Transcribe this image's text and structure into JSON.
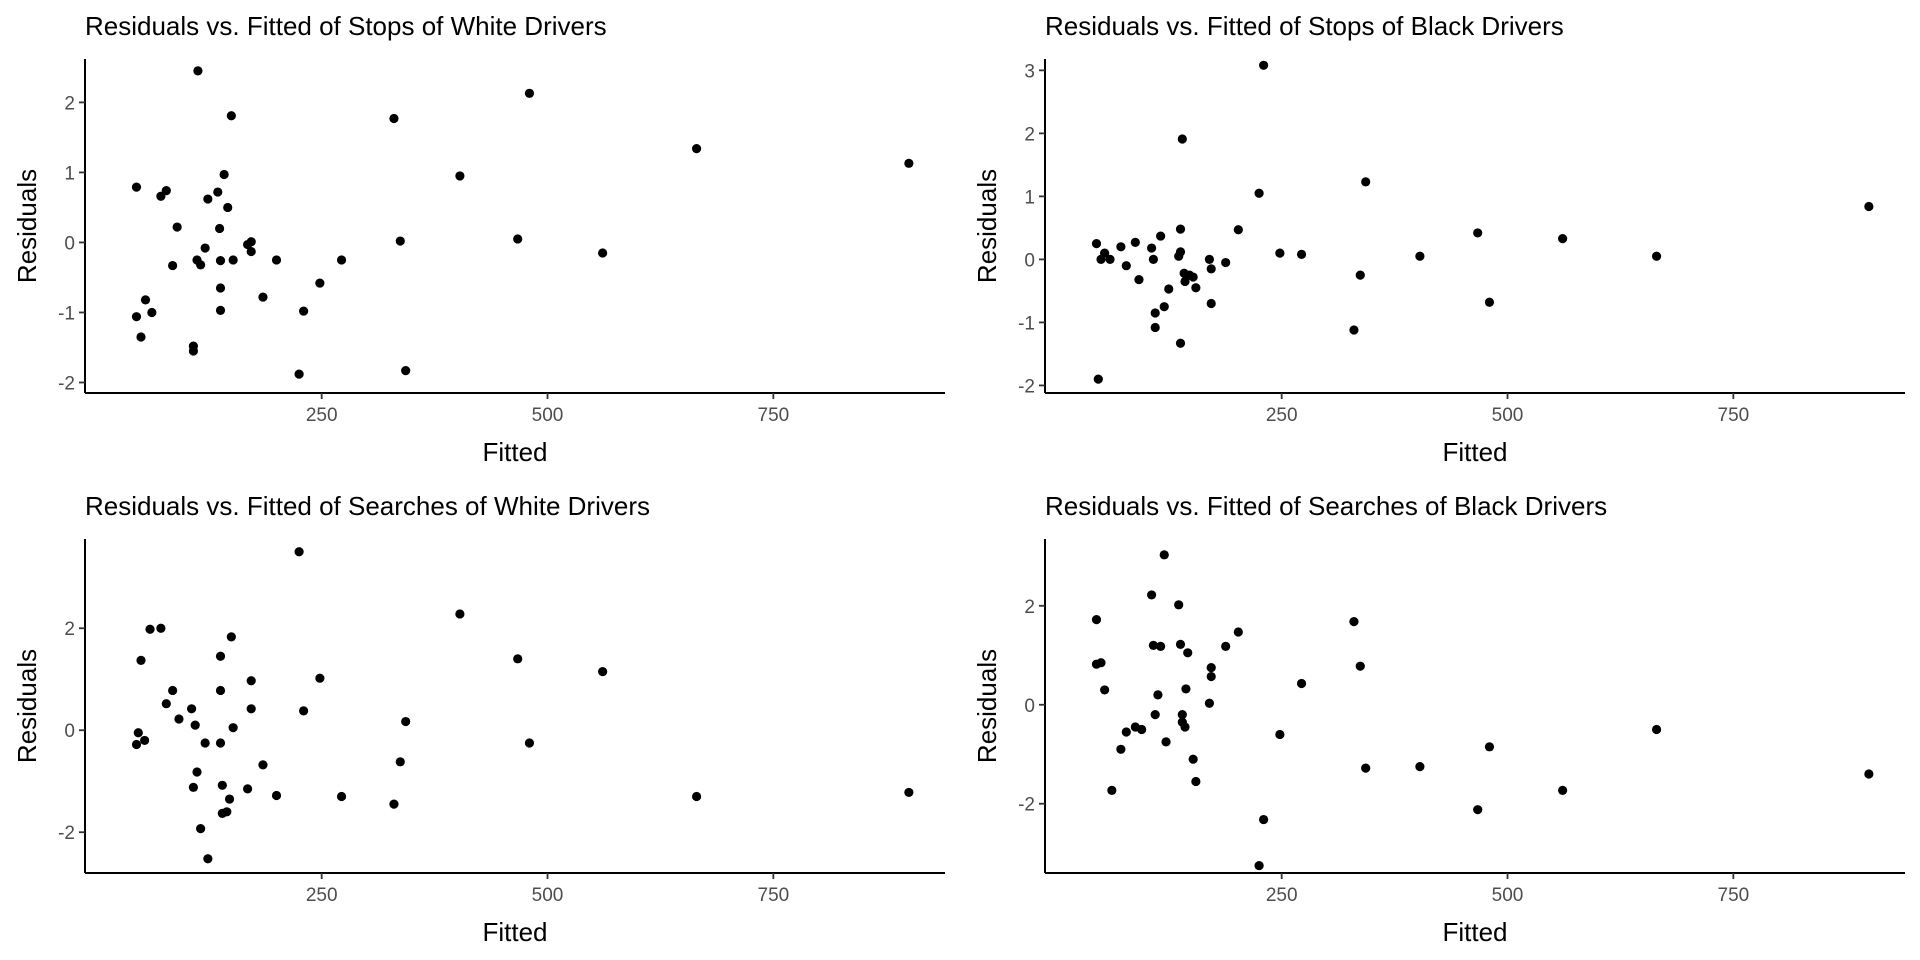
{
  "chart_data": [
    {
      "type": "scatter",
      "title": "Residuals vs. Fitted of Stops of White Drivers",
      "xlabel": "Fitted",
      "ylabel": "Residuals",
      "xlim": [
        -12,
        940
      ],
      "ylim": [
        -2.15,
        2.62
      ],
      "xticks": [
        250,
        500,
        750
      ],
      "yticks": [
        -2,
        -1,
        0,
        1,
        2
      ],
      "grid": false,
      "points": [
        [
          45,
          0.79
        ],
        [
          45,
          -1.06
        ],
        [
          50,
          -1.35
        ],
        [
          55,
          -0.82
        ],
        [
          62,
          -1.0
        ],
        [
          72,
          0.66
        ],
        [
          78,
          0.74
        ],
        [
          85,
          -0.33
        ],
        [
          90,
          0.22
        ],
        [
          108,
          -1.48
        ],
        [
          108,
          -1.55
        ],
        [
          112,
          -0.25
        ],
        [
          113,
          2.45
        ],
        [
          116,
          -0.32
        ],
        [
          121,
          -0.08
        ],
        [
          124,
          0.62
        ],
        [
          135,
          0.72
        ],
        [
          137,
          0.2
        ],
        [
          138,
          -0.26
        ],
        [
          138,
          -0.65
        ],
        [
          138,
          -0.97
        ],
        [
          142,
          0.97
        ],
        [
          146,
          0.5
        ],
        [
          150,
          1.81
        ],
        [
          152,
          -0.25
        ],
        [
          168,
          -0.03
        ],
        [
          172,
          -0.13
        ],
        [
          172,
          0.01
        ],
        [
          185,
          -0.78
        ],
        [
          200,
          -0.25
        ],
        [
          225,
          -1.88
        ],
        [
          230,
          -0.98
        ],
        [
          248,
          -0.58
        ],
        [
          272,
          -0.25
        ],
        [
          330,
          1.77
        ],
        [
          337,
          0.02
        ],
        [
          343,
          -1.83
        ],
        [
          403,
          0.95
        ],
        [
          467,
          0.05
        ],
        [
          480,
          2.13
        ],
        [
          561,
          -0.15
        ],
        [
          665,
          1.34
        ],
        [
          900,
          1.13
        ]
      ]
    },
    {
      "type": "scatter",
      "title": "Residuals vs. Fitted of Stops of Black Drivers",
      "xlabel": "Fitted",
      "ylabel": "Residuals",
      "xlim": [
        -12,
        940
      ],
      "ylim": [
        -2.12,
        3.18
      ],
      "xticks": [
        250,
        500,
        750
      ],
      "yticks": [
        -2,
        -1,
        0,
        1,
        2,
        3
      ],
      "grid": false,
      "points": [
        [
          45,
          0.25
        ],
        [
          47,
          -1.9
        ],
        [
          50,
          0.0
        ],
        [
          54,
          0.1
        ],
        [
          60,
          0.0
        ],
        [
          72,
          0.2
        ],
        [
          78,
          -0.1
        ],
        [
          88,
          0.27
        ],
        [
          92,
          -0.32
        ],
        [
          106,
          0.18
        ],
        [
          108,
          0.0
        ],
        [
          110,
          -0.85
        ],
        [
          110,
          -1.08
        ],
        [
          116,
          0.37
        ],
        [
          120,
          -0.75
        ],
        [
          125,
          -0.47
        ],
        [
          136,
          0.05
        ],
        [
          138,
          0.48
        ],
        [
          138,
          0.12
        ],
        [
          138,
          -1.33
        ],
        [
          140,
          1.91
        ],
        [
          142,
          -0.22
        ],
        [
          143,
          -0.35
        ],
        [
          148,
          -0.25
        ],
        [
          152,
          -0.28
        ],
        [
          155,
          -0.45
        ],
        [
          170,
          0.0
        ],
        [
          172,
          -0.15
        ],
        [
          172,
          -0.7
        ],
        [
          188,
          -0.05
        ],
        [
          202,
          0.47
        ],
        [
          225,
          1.05
        ],
        [
          230,
          3.08
        ],
        [
          248,
          0.1
        ],
        [
          272,
          0.08
        ],
        [
          330,
          -1.12
        ],
        [
          337,
          -0.25
        ],
        [
          343,
          1.23
        ],
        [
          403,
          0.05
        ],
        [
          467,
          0.42
        ],
        [
          480,
          -0.68
        ],
        [
          561,
          0.33
        ],
        [
          665,
          0.05
        ],
        [
          900,
          0.84
        ]
      ]
    },
    {
      "type": "scatter",
      "title": "Residuals vs. Fitted of Searches of White Drivers",
      "xlabel": "Fitted",
      "ylabel": "Residuals",
      "xlim": [
        -12,
        940
      ],
      "ylim": [
        -2.8,
        3.75
      ],
      "xticks": [
        250,
        500,
        750
      ],
      "yticks": [
        -2,
        0,
        2
      ],
      "grid": false,
      "points": [
        [
          45,
          -0.28
        ],
        [
          47,
          -0.05
        ],
        [
          50,
          1.37
        ],
        [
          54,
          -0.2
        ],
        [
          60,
          1.98
        ],
        [
          72,
          2.0
        ],
        [
          78,
          0.52
        ],
        [
          85,
          0.78
        ],
        [
          92,
          0.22
        ],
        [
          106,
          0.42
        ],
        [
          108,
          -1.12
        ],
        [
          110,
          0.1
        ],
        [
          112,
          -0.82
        ],
        [
          116,
          -1.93
        ],
        [
          121,
          -0.25
        ],
        [
          124,
          -2.52
        ],
        [
          138,
          0.78
        ],
        [
          138,
          -0.25
        ],
        [
          138,
          1.45
        ],
        [
          140,
          -1.08
        ],
        [
          140,
          -1.63
        ],
        [
          145,
          -1.6
        ],
        [
          148,
          -1.35
        ],
        [
          150,
          1.83
        ],
        [
          152,
          0.05
        ],
        [
          168,
          -1.15
        ],
        [
          172,
          0.97
        ],
        [
          172,
          0.42
        ],
        [
          185,
          -0.68
        ],
        [
          200,
          -1.28
        ],
        [
          225,
          3.5
        ],
        [
          230,
          0.38
        ],
        [
          248,
          1.02
        ],
        [
          272,
          -1.3
        ],
        [
          330,
          -1.45
        ],
        [
          337,
          -0.62
        ],
        [
          343,
          0.17
        ],
        [
          403,
          2.28
        ],
        [
          467,
          1.4
        ],
        [
          480,
          -0.25
        ],
        [
          561,
          1.15
        ],
        [
          665,
          -1.3
        ],
        [
          900,
          -1.22
        ]
      ]
    },
    {
      "type": "scatter",
      "title": "Residuals vs. Fitted of Searches of Black Drivers",
      "xlabel": "Fitted",
      "ylabel": "Residuals",
      "xlim": [
        -12,
        940
      ],
      "ylim": [
        -3.4,
        3.35
      ],
      "xticks": [
        250,
        500,
        750
      ],
      "yticks": [
        -2,
        0,
        2
      ],
      "grid": false,
      "points": [
        [
          45,
          1.72
        ],
        [
          45,
          0.82
        ],
        [
          50,
          0.85
        ],
        [
          54,
          0.3
        ],
        [
          62,
          -1.73
        ],
        [
          72,
          -0.9
        ],
        [
          78,
          -0.55
        ],
        [
          88,
          -0.45
        ],
        [
          95,
          -0.5
        ],
        [
          106,
          2.22
        ],
        [
          108,
          1.2
        ],
        [
          110,
          -0.2
        ],
        [
          113,
          0.2
        ],
        [
          116,
          1.18
        ],
        [
          120,
          3.03
        ],
        [
          122,
          -0.75
        ],
        [
          136,
          2.02
        ],
        [
          138,
          1.22
        ],
        [
          140,
          -0.2
        ],
        [
          140,
          -0.35
        ],
        [
          143,
          -0.45
        ],
        [
          144,
          0.32
        ],
        [
          146,
          1.05
        ],
        [
          152,
          -1.1
        ],
        [
          155,
          -1.55
        ],
        [
          170,
          0.03
        ],
        [
          172,
          0.57
        ],
        [
          172,
          0.75
        ],
        [
          188,
          1.18
        ],
        [
          202,
          1.47
        ],
        [
          225,
          -3.25
        ],
        [
          230,
          -2.32
        ],
        [
          248,
          -0.6
        ],
        [
          272,
          0.43
        ],
        [
          330,
          1.68
        ],
        [
          337,
          0.78
        ],
        [
          343,
          -1.28
        ],
        [
          403,
          -1.25
        ],
        [
          467,
          -2.12
        ],
        [
          480,
          -0.85
        ],
        [
          561,
          -1.73
        ],
        [
          665,
          -0.5
        ],
        [
          900,
          -1.4
        ]
      ]
    }
  ]
}
